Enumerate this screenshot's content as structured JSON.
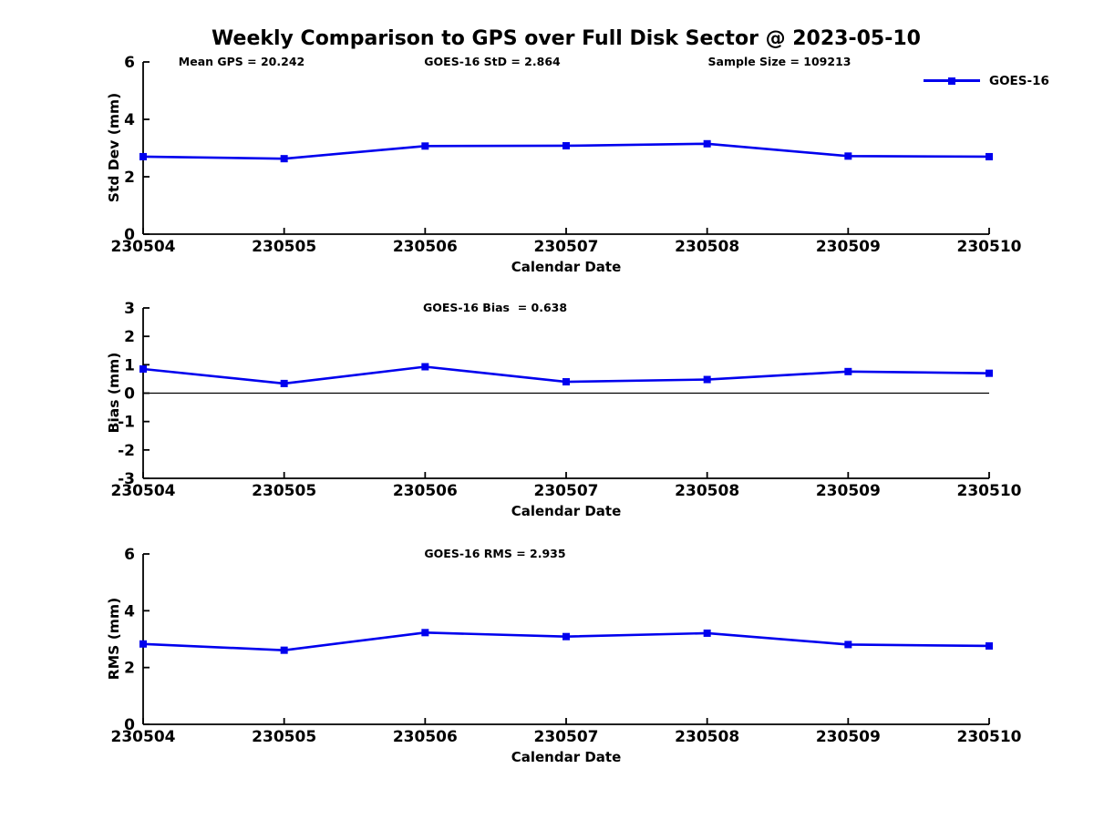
{
  "title": "Weekly Comparison to GPS over Full Disk Sector @ 2023-05-10",
  "annotations": {
    "mean_gps": "Mean GPS = 20.242",
    "sample_size": "Sample Size = 109213"
  },
  "stats": {
    "mean_gps": 20.242,
    "goes16_std": 2.864,
    "goes16_bias": 0.638,
    "goes16_rms": 2.935,
    "sample_size": 109213
  },
  "legend": {
    "label": "GOES-16",
    "marker": "square"
  },
  "colors": {
    "line": "#0000EE",
    "axis": "#000000",
    "text": "#000000",
    "background": "#FFFFFF"
  },
  "chart_data": [
    {
      "type": "line",
      "annotation": "GOES-16 StD = 2.864",
      "x": [
        "230504",
        "230505",
        "230506",
        "230507",
        "230508",
        "230509",
        "230510"
      ],
      "series": [
        {
          "name": "GOES-16",
          "values": [
            2.7,
            2.63,
            3.07,
            3.08,
            3.15,
            2.72,
            2.7
          ]
        }
      ],
      "xlabel": "Calendar Date",
      "ylabel": "Std Dev (mm)",
      "ylim": [
        0,
        6
      ],
      "yticks": [
        0,
        2,
        4,
        6
      ],
      "grid": false,
      "legend_position": "top-right",
      "marker": "square",
      "zero_line": false
    },
    {
      "type": "line",
      "annotation": "GOES-16 Bias  = 0.638",
      "x": [
        "230504",
        "230505",
        "230506",
        "230507",
        "230508",
        "230509",
        "230510"
      ],
      "series": [
        {
          "name": "GOES-16",
          "values": [
            0.85,
            0.34,
            0.93,
            0.4,
            0.48,
            0.76,
            0.7
          ]
        }
      ],
      "xlabel": "Calendar Date",
      "ylabel": "Bias (mm)",
      "ylim": [
        -3,
        3
      ],
      "yticks": [
        -3,
        -2,
        -1,
        0,
        1,
        2,
        3
      ],
      "grid": false,
      "marker": "square",
      "zero_line": true
    },
    {
      "type": "line",
      "annotation": "GOES-16 RMS = 2.935",
      "x": [
        "230504",
        "230505",
        "230506",
        "230507",
        "230508",
        "230509",
        "230510"
      ],
      "series": [
        {
          "name": "GOES-16",
          "values": [
            2.83,
            2.61,
            3.23,
            3.09,
            3.21,
            2.81,
            2.76
          ]
        }
      ],
      "xlabel": "Calendar Date",
      "ylabel": "RMS (mm)",
      "ylim": [
        0,
        6
      ],
      "yticks": [
        0,
        2,
        4,
        6
      ],
      "grid": false,
      "marker": "square",
      "zero_line": false
    }
  ]
}
